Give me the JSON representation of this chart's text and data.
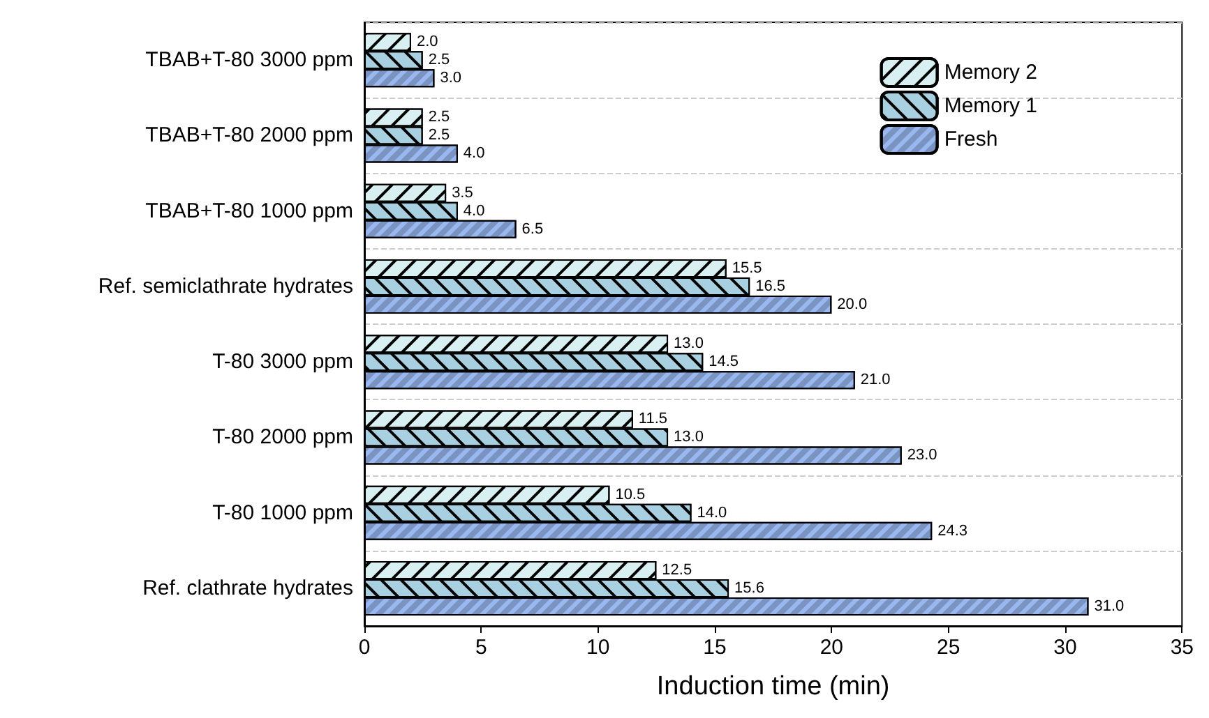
{
  "chart_data": {
    "type": "bar",
    "orientation": "horizontal",
    "xlabel": "Induction time (min)",
    "categories": [
      "TBAB+T-80 3000 ppm",
      "TBAB+T-80 2000 ppm",
      "TBAB+T-80 1000 ppm",
      "Ref. semiclathrate hydrates",
      "T-80 3000 ppm",
      "T-80 2000 ppm",
      "T-80 1000 ppm",
      "Ref. clathrate hydrates"
    ],
    "series": [
      {
        "name": "Memory 2",
        "color": "#d9f0f3",
        "values": [
          2.0,
          2.5,
          3.5,
          15.5,
          13.0,
          11.5,
          10.5,
          12.5
        ],
        "value_labels": [
          "2.0",
          "2.5",
          "3.5",
          "15.5",
          "13.0",
          "11.5",
          "10.5",
          "12.5"
        ]
      },
      {
        "name": "Memory 1",
        "color": "#a8d0e0",
        "values": [
          2.5,
          2.5,
          4.0,
          16.5,
          14.5,
          13.0,
          14.0,
          15.6
        ],
        "value_labels": [
          "2.5",
          "2.5",
          "4.0",
          "16.5",
          "14.5",
          "13.0",
          "14.0",
          "15.6"
        ]
      },
      {
        "name": "Fresh",
        "color": "#99b8f0",
        "values": [
          3.0,
          4.0,
          6.5,
          20.0,
          21.0,
          23.0,
          24.3,
          31.0
        ],
        "value_labels": [
          "3.0",
          "4.0",
          "6.5",
          "20.0",
          "21.0",
          "23.0",
          "24.3",
          "31.0"
        ]
      }
    ],
    "xlim": [
      0,
      35
    ],
    "xticks": [
      0,
      5,
      10,
      15,
      20,
      25,
      30,
      35
    ],
    "grid": "y",
    "legend": "top right"
  }
}
